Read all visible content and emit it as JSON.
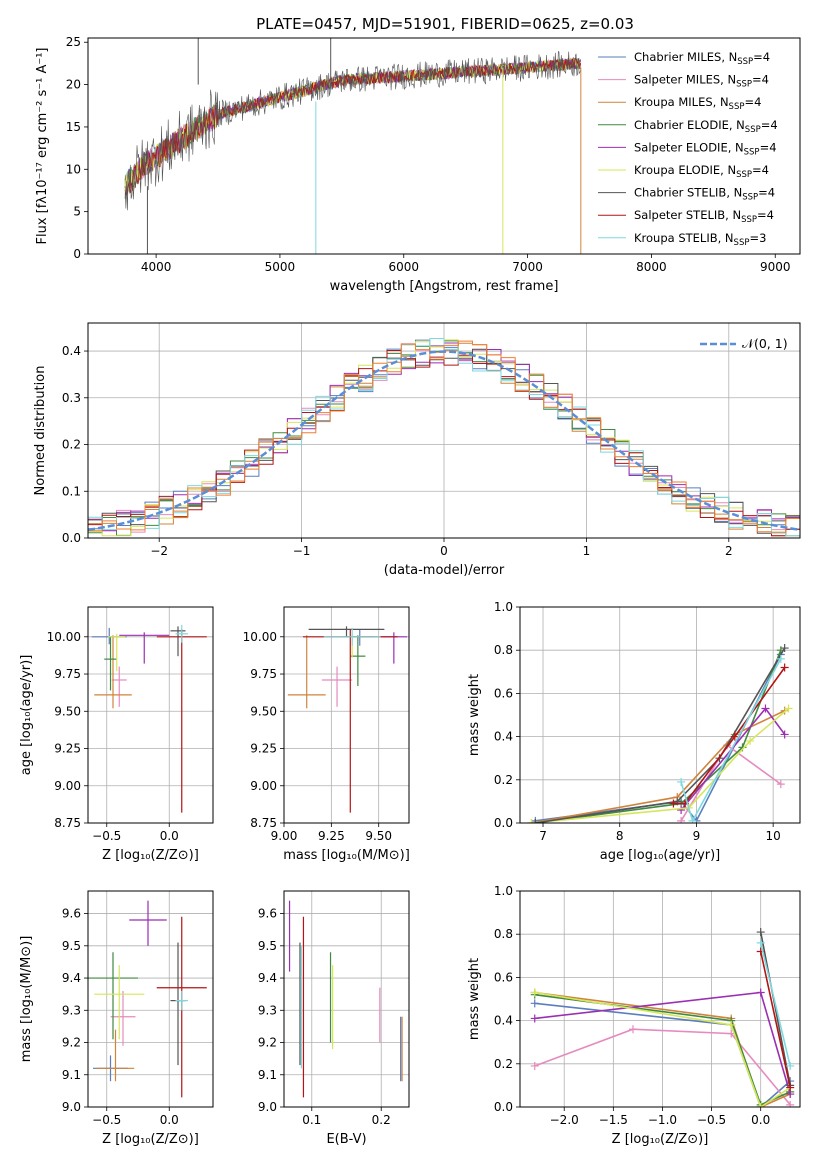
{
  "figure": {
    "title": "PLATE=0457, MJD=51901, FIBERID=0625, z=0.03",
    "models": [
      {
        "name": "Chabrier MILES, N_SSP=4",
        "sub": "SSP",
        "base": "Chabrier MILES, N",
        "tail": "=4",
        "color": "#5a7ebe"
      },
      {
        "name": "Salpeter MILES, N_SSP=4",
        "sub": "SSP",
        "base": "Salpeter MILES, N",
        "tail": "=4",
        "color": "#e58bbf"
      },
      {
        "name": "Kroupa MILES, N_SSP=4",
        "sub": "SSP",
        "base": "Kroupa MILES, N",
        "tail": "=4",
        "color": "#d0843b"
      },
      {
        "name": "Chabrier ELODIE, N_SSP=4",
        "sub": "SSP",
        "base": "Chabrier ELODIE, N",
        "tail": "=4",
        "color": "#3f8a3f"
      },
      {
        "name": "Salpeter ELODIE, N_SSP=4",
        "sub": "SSP",
        "base": "Salpeter ELODIE, N",
        "tail": "=4",
        "color": "#9b2fb2"
      },
      {
        "name": "Kroupa ELODIE, N_SSP=4",
        "sub": "SSP",
        "base": "Kroupa ELODIE, N",
        "tail": "=4",
        "color": "#d6e65a"
      },
      {
        "name": "Chabrier STELIB, N_SSP=4",
        "sub": "SSP",
        "base": "Chabrier STELIB, N",
        "tail": "=4",
        "color": "#555555"
      },
      {
        "name": "Salpeter STELIB, N_SSP=4",
        "sub": "SSP",
        "base": "Salpeter STELIB, N",
        "tail": "=4",
        "color": "#b31414"
      },
      {
        "name": "Kroupa STELIB, N_SSP=3",
        "sub": "SSP",
        "base": "Kroupa STELIB, N",
        "tail": "=3",
        "color": "#7ed8e0"
      }
    ],
    "histogram_colors": [
      "#5a7ebe",
      "#e58bbf",
      "#d0843b",
      "#3f8a3f",
      "#9b2fb2",
      "#d6e65a",
      "#555555",
      "#b31414",
      "#7ed8e0",
      "#f07f2e"
    ],
    "grid_color": "#b0b0b0",
    "normal_curve_color": "#5a8fd8"
  },
  "chart_data": [
    {
      "id": "spectrum",
      "type": "line",
      "xlabel": "wavelength [Angstrom, rest frame]",
      "ylabel": "Flux [fλ10⁻¹⁷ erg cm⁻² s⁻¹ A⁻¹]",
      "xlim": [
        3450,
        9200
      ],
      "ylim": [
        0,
        25.5
      ],
      "xticks": [
        4000,
        5000,
        6000,
        7000,
        8000,
        9000
      ],
      "yticks": [
        0,
        5,
        10,
        15,
        20,
        25
      ],
      "wavelength_range": [
        3750,
        7430
      ],
      "continuum": [
        [
          3750,
          8
        ],
        [
          3900,
          10.5
        ],
        [
          4000,
          11.5
        ],
        [
          4200,
          13.5
        ],
        [
          4500,
          16.5
        ],
        [
          5000,
          18.5
        ],
        [
          5500,
          20.5
        ],
        [
          6000,
          21
        ],
        [
          6500,
          21.5
        ],
        [
          7000,
          22
        ],
        [
          7400,
          22.5
        ]
      ],
      "grid": false,
      "legend": "top-right"
    },
    {
      "id": "residuals",
      "type": "bar",
      "xlabel": "(data-model)/error",
      "ylabel": "Normed distribution",
      "xlim": [
        -2.5,
        2.5
      ],
      "ylim": [
        0,
        0.46
      ],
      "xticks": [
        -2,
        -1,
        0,
        1,
        2
      ],
      "yticks": [
        0.0,
        0.1,
        0.2,
        0.3,
        0.4
      ],
      "bin_width": 0.1,
      "reference_curve": "N(0,1)",
      "legend_label": "𝒩(0, 1)",
      "grid": true,
      "legend": "top-right"
    },
    {
      "id": "age_vs_Z",
      "type": "scatter",
      "xlabel": "Z [log₁₀(Z/Z⊙)]",
      "ylabel": "age  [log₁₀(age/yr)]",
      "xlim": [
        -0.65,
        0.35
      ],
      "ylim": [
        8.75,
        10.2
      ],
      "xticks": [
        -0.5,
        0.0
      ],
      "yticks": [
        8.75,
        9.0,
        9.25,
        9.5,
        9.75,
        10.0
      ],
      "points": [
        {
          "x": -0.48,
          "xerr": 0.14,
          "y": 10.0,
          "yerr": [
            0.05,
            0.06
          ]
        },
        {
          "x": -0.4,
          "xerr": 0.06,
          "y": 9.71,
          "yerr": [
            0.18,
            0.09
          ]
        },
        {
          "x": -0.45,
          "xerr": 0.15,
          "y": 9.61,
          "yerr": [
            0.09,
            0.4
          ]
        },
        {
          "x": -0.47,
          "xerr": 0.05,
          "y": 9.85,
          "yerr": [
            0.21,
            0.15
          ]
        },
        {
          "x": -0.2,
          "xerr": 0.2,
          "y": 10.01,
          "yerr": [
            0.19,
            0.02
          ]
        },
        {
          "x": -0.42,
          "xerr": 0.07,
          "y": 10.0,
          "yerr": [
            0.23,
            0.02
          ]
        },
        {
          "x": 0.07,
          "xerr": 0.06,
          "y": 10.04,
          "yerr": [
            0.17,
            0.03
          ]
        },
        {
          "x": 0.1,
          "xerr": 0.2,
          "y": 10.0,
          "yerr": [
            1.18,
            0.05
          ]
        },
        {
          "x": 0.1,
          "xerr": 0.05,
          "y": 10.02,
          "yerr": [
            0.06,
            0.06
          ]
        }
      ],
      "grid": true
    },
    {
      "id": "age_vs_mass",
      "type": "scatter",
      "xlabel": "mass [log₁₀(M/M⊙)]",
      "ylabel": "",
      "xlim": [
        9.0,
        9.66
      ],
      "ylim": [
        8.75,
        10.2
      ],
      "xticks": [
        9.0,
        9.25,
        9.5
      ],
      "yticks": [
        8.75,
        9.0,
        9.25,
        9.5,
        9.75,
        10.0
      ],
      "points": [
        {
          "x": 9.4,
          "xerr": 0.08,
          "y": 10.0,
          "yerr": [
            0.06,
            0.05
          ]
        },
        {
          "x": 9.28,
          "xerr": 0.08,
          "y": 9.71,
          "yerr": [
            0.18,
            0.09
          ]
        },
        {
          "x": 9.12,
          "xerr": 0.1,
          "y": 9.61,
          "yerr": [
            0.09,
            0.4
          ]
        },
        {
          "x": 9.39,
          "xerr": 0.04,
          "y": 9.87,
          "yerr": [
            0.2,
            0.14
          ]
        },
        {
          "x": 9.58,
          "xerr": 0.07,
          "y": 10.0,
          "yerr": [
            0.18,
            0.03
          ]
        },
        {
          "x": 9.36,
          "xerr": 0.07,
          "y": 10.0,
          "yerr": [
            0.14,
            0.02
          ]
        },
        {
          "x": 9.33,
          "xerr": 0.2,
          "y": 10.05,
          "yerr": [
            0.05,
            0.02
          ]
        },
        {
          "x": 9.35,
          "xerr": 0.25,
          "y": 10.0,
          "yerr": [
            1.18,
            0.05
          ]
        },
        {
          "x": 9.36,
          "xerr": 0.15,
          "y": 10.0,
          "yerr": [
            0.06,
            0.06
          ]
        }
      ],
      "grid": true
    },
    {
      "id": "mass_weight_vs_age",
      "type": "line",
      "xlabel": "age  [log₁₀(age/yr)]",
      "ylabel": "mass weight",
      "xlim": [
        6.7,
        10.35
      ],
      "ylim": [
        0,
        1.0
      ],
      "xticks": [
        7,
        8,
        9,
        10
      ],
      "yticks": [
        0.0,
        0.2,
        0.4,
        0.6,
        0.8,
        1.0
      ],
      "series": [
        {
          "x": [
            6.9,
            8.8,
            9.0,
            10.1
          ],
          "y": [
            0.01,
            0.1,
            0.01,
            0.78
          ]
        },
        {
          "x": [
            8.8,
            9.4,
            10.1
          ],
          "y": [
            0.01,
            0.36,
            0.18
          ]
        },
        {
          "x": [
            6.85,
            8.75,
            9.5,
            10.15
          ],
          "y": [
            0.0,
            0.12,
            0.41,
            0.52
          ]
        },
        {
          "x": [
            6.9,
            8.8,
            9.6,
            10.1
          ],
          "y": [
            0.0,
            0.09,
            0.35,
            0.8
          ]
        },
        {
          "x": [
            8.8,
            9.9,
            10.15
          ],
          "y": [
            0.06,
            0.53,
            0.41
          ]
        },
        {
          "x": [
            6.85,
            8.9,
            9.7,
            10.2
          ],
          "y": [
            0.0,
            0.07,
            0.38,
            0.53
          ]
        },
        {
          "x": [
            6.9,
            8.75,
            9.3,
            10.15
          ],
          "y": [
            0.0,
            0.1,
            0.3,
            0.81
          ]
        },
        {
          "x": [
            8.7,
            8.85,
            9.5,
            10.15
          ],
          "y": [
            0.09,
            0.09,
            0.4,
            0.72
          ]
        },
        {
          "x": [
            8.8,
            8.95,
            10.1
          ],
          "y": [
            0.19,
            0.01,
            0.76
          ]
        }
      ],
      "grid": true
    },
    {
      "id": "mass_vs_Z",
      "type": "scatter",
      "xlabel": "Z [log₁₀(Z/Z⊙)]",
      "ylabel": "mass [log₁₀(M/M⊙)]",
      "xlim": [
        -0.65,
        0.35
      ],
      "ylim": [
        9.0,
        9.67
      ],
      "xticks": [
        -0.5,
        0.0
      ],
      "yticks": [
        9.0,
        9.1,
        9.2,
        9.3,
        9.4,
        9.5,
        9.6
      ],
      "points": [
        {
          "x": -0.47,
          "xerr": 0.14,
          "y": 9.12,
          "yerr": [
            0.04,
            0.04
          ]
        },
        {
          "x": -0.37,
          "xerr": 0.1,
          "y": 9.28,
          "yerr": [
            0.09,
            0.08
          ]
        },
        {
          "x": -0.43,
          "xerr": 0.15,
          "y": 9.12,
          "yerr": [
            0.04,
            0.12
          ]
        },
        {
          "x": -0.45,
          "xerr": 0.2,
          "y": 9.4,
          "yerr": [
            0.19,
            0.08
          ]
        },
        {
          "x": -0.17,
          "xerr": 0.15,
          "y": 9.58,
          "yerr": [
            0.08,
            0.06
          ]
        },
        {
          "x": -0.4,
          "xerr": 0.2,
          "y": 9.35,
          "yerr": [
            0.14,
            0.09
          ]
        },
        {
          "x": 0.07,
          "xerr": 0.06,
          "y": 9.33,
          "yerr": [
            0.2,
            0.18
          ]
        },
        {
          "x": 0.1,
          "xerr": 0.2,
          "y": 9.37,
          "yerr": [
            0.34,
            0.22
          ]
        },
        {
          "x": 0.1,
          "xerr": 0.05,
          "y": 9.33,
          "yerr": [
            0.03,
            0.03
          ]
        }
      ],
      "grid": true
    },
    {
      "id": "mass_vs_ebv",
      "type": "scatter",
      "xlabel": "E(B-V)",
      "ylabel": "",
      "xlim": [
        0.06,
        0.24
      ],
      "ylim": [
        9.0,
        9.67
      ],
      "xticks": [
        0.1,
        0.2
      ],
      "yticks": [
        9.0,
        9.1,
        9.2,
        9.3,
        9.4,
        9.5,
        9.6
      ],
      "points": [
        {
          "x": 0.228,
          "y": 9.18,
          "yerr": [
            0.1,
            0.1
          ]
        },
        {
          "x": 0.198,
          "y": 9.28,
          "yerr": [
            0.08,
            0.09
          ]
        },
        {
          "x": 0.23,
          "y": 9.18,
          "yerr": [
            0.1,
            0.1
          ]
        },
        {
          "x": 0.127,
          "y": 9.34,
          "yerr": [
            0.14,
            0.14
          ]
        },
        {
          "x": 0.068,
          "y": 9.53,
          "yerr": [
            0.11,
            0.11
          ]
        },
        {
          "x": 0.13,
          "y": 9.3,
          "yerr": [
            0.12,
            0.14
          ]
        },
        {
          "x": 0.083,
          "y": 9.33,
          "yerr": [
            0.2,
            0.18
          ]
        },
        {
          "x": 0.088,
          "y": 9.31,
          "yerr": [
            0.28,
            0.28
          ]
        },
        {
          "x": 0.085,
          "y": 9.3,
          "yerr": [
            0.18,
            0.2
          ]
        }
      ],
      "grid": true
    },
    {
      "id": "mass_weight_vs_Z",
      "type": "line",
      "xlabel": "Z [log₁₀(Z/Z⊙)]",
      "ylabel": "mass weight",
      "xlim": [
        -2.45,
        0.4
      ],
      "ylim": [
        0,
        1.0
      ],
      "xticks": [
        -2.0,
        -1.5,
        -1.0,
        -0.5,
        0.0
      ],
      "yticks": [
        0.0,
        0.2,
        0.4,
        0.6,
        0.8,
        1.0
      ],
      "series": [
        {
          "x": [
            -2.3,
            -0.3,
            0.0,
            0.3
          ],
          "y": [
            0.48,
            0.38,
            0.0,
            0.12
          ]
        },
        {
          "x": [
            -2.3,
            -1.3,
            -0.3,
            0.3
          ],
          "y": [
            0.19,
            0.36,
            0.34,
            0.01
          ]
        },
        {
          "x": [
            -2.3,
            -0.3,
            0.0,
            0.3
          ],
          "y": [
            0.53,
            0.41,
            0.0,
            0.06
          ]
        },
        {
          "x": [
            -2.3,
            -0.3,
            0.0,
            0.3
          ],
          "y": [
            0.52,
            0.4,
            0.01,
            0.07
          ]
        },
        {
          "x": [
            -2.3,
            0.0,
            0.3
          ],
          "y": [
            0.41,
            0.53,
            0.06
          ]
        },
        {
          "x": [
            -2.3,
            -0.3,
            0.0,
            0.3
          ],
          "y": [
            0.53,
            0.38,
            0.0,
            0.09
          ]
        },
        {
          "x": [
            0.0,
            0.3
          ],
          "y": [
            0.81,
            0.1
          ]
        },
        {
          "x": [
            0.0,
            0.3
          ],
          "y": [
            0.72,
            0.09
          ]
        },
        {
          "x": [
            0.0,
            0.3
          ],
          "y": [
            0.76,
            0.19
          ]
        }
      ],
      "grid": true
    }
  ]
}
